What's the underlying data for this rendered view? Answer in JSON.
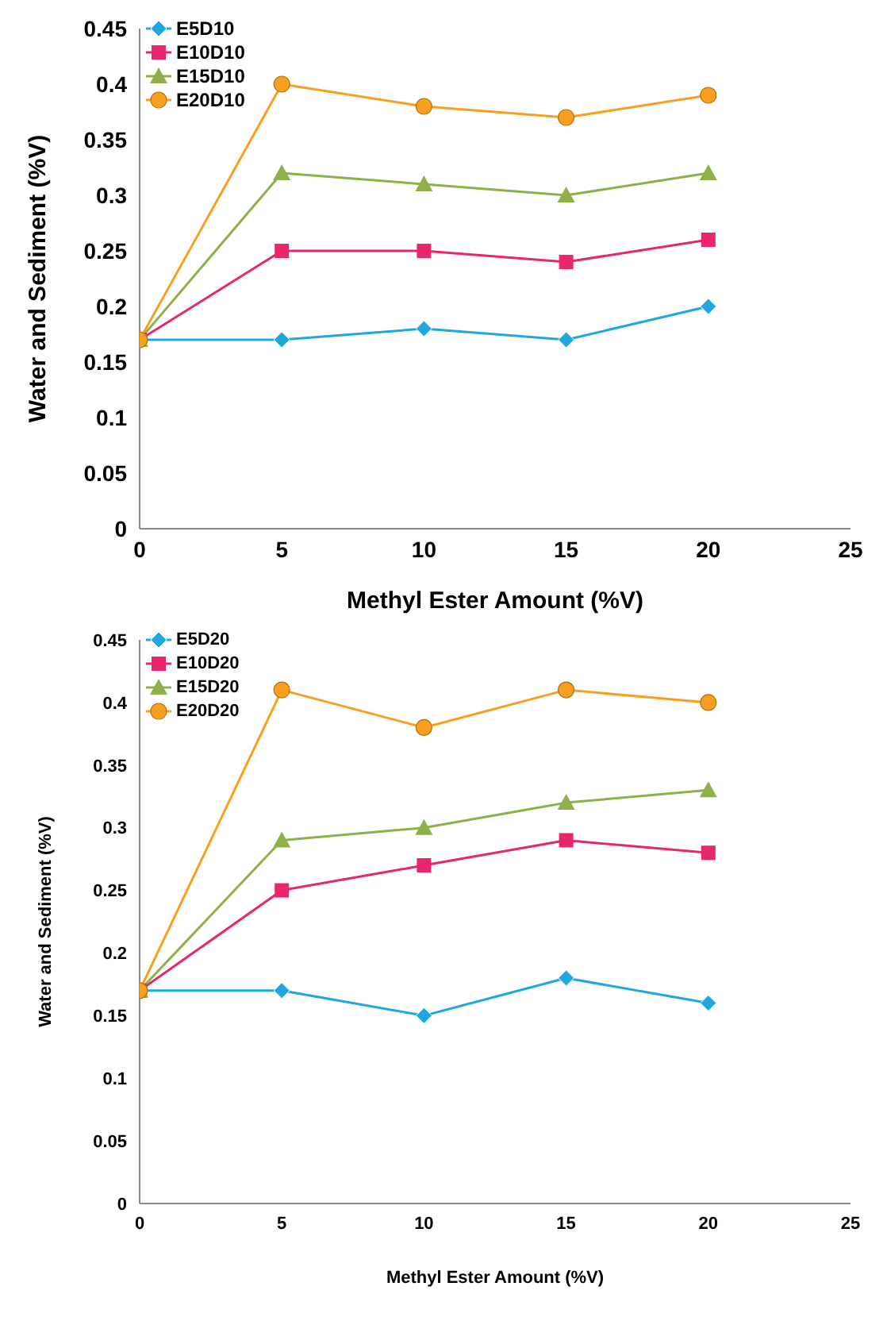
{
  "chart_data": [
    {
      "type": "line",
      "xlabel": "Methyl Ester Amount (%V)",
      "ylabel": "Water and Sediment (%V)",
      "x": [
        0,
        5,
        10,
        15,
        20
      ],
      "xlim": [
        0,
        25
      ],
      "xticks": [
        0,
        5,
        10,
        15,
        20,
        25
      ],
      "ylim": [
        0,
        0.45
      ],
      "yticks": [
        0,
        0.05,
        0.1,
        0.15,
        0.2,
        0.25,
        0.3,
        0.35,
        0.4,
        0.45
      ],
      "grid": false,
      "legend": "top left",
      "series": [
        {
          "name": "E5D10",
          "color": "#1fa8e0",
          "marker": "diamond",
          "values": [
            0.17,
            0.17,
            0.18,
            0.17,
            0.2
          ]
        },
        {
          "name": "E10D10",
          "color": "#e8266e",
          "marker": "square",
          "values": [
            0.17,
            0.25,
            0.25,
            0.24,
            0.26
          ]
        },
        {
          "name": "E15D10",
          "color": "#8db04a",
          "marker": "triangle",
          "values": [
            0.17,
            0.32,
            0.31,
            0.3,
            0.32
          ]
        },
        {
          "name": "E20D10",
          "color": "#f7a020",
          "marker": "circle",
          "values": [
            0.17,
            0.4,
            0.38,
            0.37,
            0.39
          ]
        }
      ]
    },
    {
      "type": "line",
      "xlabel": "Methyl Ester Amount (%V)",
      "ylabel": "Water and Sediment (%V)",
      "x": [
        0,
        5,
        10,
        15,
        20
      ],
      "xlim": [
        0,
        25
      ],
      "xticks": [
        0,
        5,
        10,
        15,
        20,
        25
      ],
      "ylim": [
        0,
        0.45
      ],
      "yticks": [
        0,
        0.05,
        0.1,
        0.15,
        0.2,
        0.25,
        0.3,
        0.35,
        0.4,
        0.45
      ],
      "grid": false,
      "legend": "top left",
      "series": [
        {
          "name": "E5D20",
          "color": "#1fa8e0",
          "marker": "diamond",
          "values": [
            0.17,
            0.17,
            0.15,
            0.18,
            0.16
          ]
        },
        {
          "name": "E10D20",
          "color": "#e8266e",
          "marker": "square",
          "values": [
            0.17,
            0.25,
            0.27,
            0.29,
            0.28
          ]
        },
        {
          "name": "E15D20",
          "color": "#8db04a",
          "marker": "triangle",
          "values": [
            0.17,
            0.29,
            0.3,
            0.32,
            0.33
          ]
        },
        {
          "name": "E20D20",
          "color": "#f7a020",
          "marker": "circle",
          "values": [
            0.17,
            0.41,
            0.38,
            0.41,
            0.4
          ]
        }
      ]
    }
  ]
}
